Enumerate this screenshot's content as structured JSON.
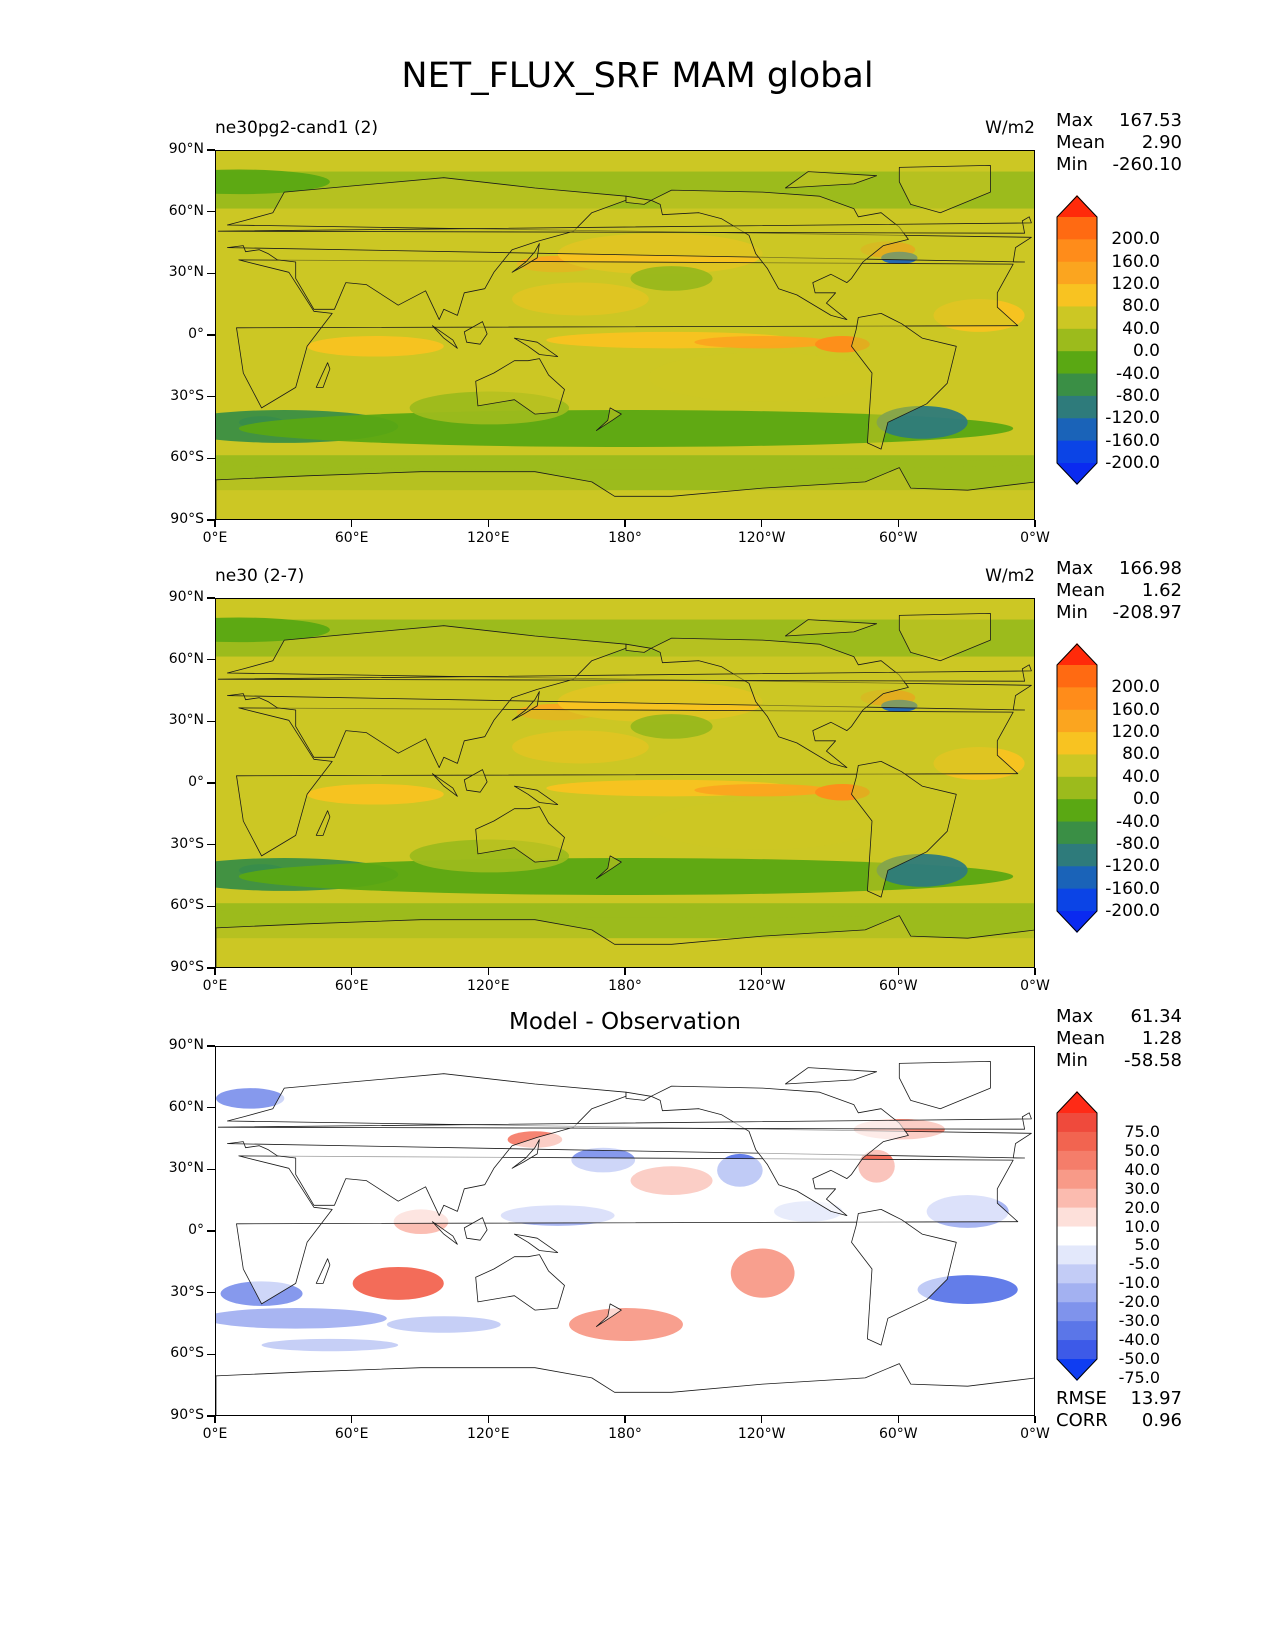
{
  "title": "NET_FLUX_SRF MAM global",
  "axes": {
    "y_ticks": [
      "90°N",
      "60°N",
      "30°N",
      "0°",
      "30°S",
      "60°S",
      "90°S"
    ],
    "x_ticks": [
      "0°E",
      "60°E",
      "120°E",
      "180°",
      "120°W",
      "60°W",
      "0°W"
    ]
  },
  "panels": [
    {
      "title_left": "ne30pg2-cand1 (2)",
      "title_center": "",
      "units": "W/m2",
      "stats": [
        {
          "label": "Max",
          "value": "167.53"
        },
        {
          "label": "Mean",
          "value": "2.90"
        },
        {
          "label": "Min",
          "value": "-260.10"
        }
      ],
      "extra_stats": [],
      "colorbar_labels": [
        "200.0",
        "160.0",
        "120.0",
        "80.0",
        "40.0",
        "0.0",
        "-40.0",
        "-80.0",
        "-120.0",
        "-160.0",
        "-200.0"
      ],
      "colorbar_colors": [
        "#ff2a0a",
        "#ff6a12",
        "#ff8c1a",
        "#fba51f",
        "#f8c321",
        "#ccc724",
        "#9cbb1c",
        "#5aa813",
        "#3a8f45",
        "#2e7b7b",
        "#1a63b8",
        "#0b44e6",
        "#0a2af0"
      ]
    },
    {
      "title_left": "ne30 (2-7)",
      "title_center": "",
      "units": "W/m2",
      "stats": [
        {
          "label": "Max",
          "value": "166.98"
        },
        {
          "label": "Mean",
          "value": "1.62"
        },
        {
          "label": "Min",
          "value": "-208.97"
        }
      ],
      "extra_stats": [],
      "colorbar_labels": [
        "200.0",
        "160.0",
        "120.0",
        "80.0",
        "40.0",
        "0.0",
        "-40.0",
        "-80.0",
        "-120.0",
        "-160.0",
        "-200.0"
      ],
      "colorbar_colors": [
        "#ff2a0a",
        "#ff6a12",
        "#ff8c1a",
        "#fba51f",
        "#f8c321",
        "#ccc724",
        "#9cbb1c",
        "#5aa813",
        "#3a8f45",
        "#2e7b7b",
        "#1a63b8",
        "#0b44e6",
        "#0a2af0"
      ]
    },
    {
      "title_left": "",
      "title_center": "Model - Observation",
      "units": "",
      "stats": [
        {
          "label": "Max",
          "value": "61.34"
        },
        {
          "label": "Mean",
          "value": "1.28"
        },
        {
          "label": "Min",
          "value": "-58.58"
        }
      ],
      "extra_stats": [
        {
          "label": "RMSE",
          "value": "13.97"
        },
        {
          "label": "CORR",
          "value": "0.96"
        }
      ],
      "colorbar_labels": [
        "75.0",
        "50.0",
        "40.0",
        "30.0",
        "20.0",
        "10.0",
        "5.0",
        "-5.0",
        "-10.0",
        "-20.0",
        "-30.0",
        "-40.0",
        "-50.0",
        "-75.0"
      ],
      "colorbar_colors": [
        "#ff2a16",
        "#ef4a3c",
        "#f26450",
        "#f57d6a",
        "#f89a88",
        "#fbbbaf",
        "#fde0da",
        "#ffffff",
        "#e3e8fb",
        "#c3ccf6",
        "#a3b1f1",
        "#7f93ec",
        "#5b76e8",
        "#3d5ae8",
        "#0f3df2"
      ]
    }
  ]
}
